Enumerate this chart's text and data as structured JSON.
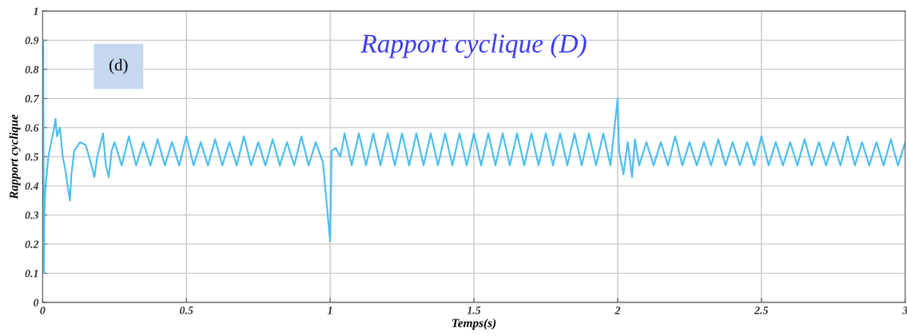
{
  "chart_data": {
    "type": "line",
    "title": "Rapport cyclique (D)",
    "xlabel": "Temps(s)",
    "ylabel": "Rapport cyclique",
    "annotations": [
      "(d)"
    ],
    "xlim": [
      0,
      3
    ],
    "ylim": [
      0,
      1
    ],
    "xticks": [
      0,
      0.5,
      1,
      1.5,
      2,
      2.5,
      3
    ],
    "yticks": [
      0,
      0.1,
      0.2,
      0.3,
      0.4,
      0.5,
      0.6,
      0.7,
      0.8,
      0.9,
      1
    ],
    "grid": true,
    "series": [
      {
        "color": "#4fbfee",
        "x": [
          0,
          0.002,
          0.004,
          0.006,
          0.01,
          0.02,
          0.03,
          0.04,
          0.045,
          0.05,
          0.06,
          0.07,
          0.08,
          0.09,
          0.095,
          0.1,
          0.11,
          0.13,
          0.15,
          0.17,
          0.18,
          0.19,
          0.2,
          0.21,
          0.22,
          0.23,
          0.24,
          0.25,
          0.275,
          0.3,
          0.325,
          0.35,
          0.375,
          0.4,
          0.425,
          0.45,
          0.475,
          0.5,
          0.525,
          0.55,
          0.575,
          0.6,
          0.625,
          0.65,
          0.675,
          0.7,
          0.725,
          0.75,
          0.775,
          0.8,
          0.825,
          0.85,
          0.875,
          0.9,
          0.925,
          0.95,
          0.975,
          1.0,
          1.005,
          1.02,
          1.035,
          1.045,
          1.05,
          1.075,
          1.1,
          1.125,
          1.15,
          1.175,
          1.2,
          1.225,
          1.25,
          1.275,
          1.3,
          1.325,
          1.35,
          1.375,
          1.4,
          1.425,
          1.45,
          1.475,
          1.5,
          1.525,
          1.55,
          1.575,
          1.6,
          1.625,
          1.65,
          1.675,
          1.7,
          1.725,
          1.75,
          1.775,
          1.8,
          1.825,
          1.85,
          1.875,
          1.9,
          1.925,
          1.95,
          1.975,
          2.0,
          2.005,
          2.02,
          2.035,
          2.05,
          2.06,
          2.075,
          2.1,
          2.125,
          2.15,
          2.175,
          2.2,
          2.225,
          2.25,
          2.275,
          2.3,
          2.325,
          2.35,
          2.375,
          2.4,
          2.425,
          2.45,
          2.475,
          2.5,
          2.525,
          2.55,
          2.575,
          2.6,
          2.625,
          2.65,
          2.675,
          2.7,
          2.725,
          2.75,
          2.775,
          2.8,
          2.825,
          2.85,
          2.875,
          2.9,
          2.925,
          2.95,
          2.975,
          3.0
        ],
        "values": [
          0.44,
          0.9,
          0.1,
          0.3,
          0.4,
          0.5,
          0.55,
          0.6,
          0.63,
          0.57,
          0.6,
          0.5,
          0.45,
          0.38,
          0.35,
          0.44,
          0.52,
          0.55,
          0.54,
          0.47,
          0.43,
          0.5,
          0.54,
          0.58,
          0.47,
          0.43,
          0.52,
          0.55,
          0.47,
          0.57,
          0.47,
          0.55,
          0.47,
          0.56,
          0.47,
          0.55,
          0.47,
          0.57,
          0.47,
          0.55,
          0.47,
          0.56,
          0.47,
          0.55,
          0.47,
          0.57,
          0.47,
          0.55,
          0.47,
          0.56,
          0.47,
          0.55,
          0.47,
          0.57,
          0.47,
          0.55,
          0.48,
          0.21,
          0.52,
          0.53,
          0.5,
          0.55,
          0.58,
          0.47,
          0.58,
          0.47,
          0.58,
          0.47,
          0.58,
          0.47,
          0.58,
          0.47,
          0.58,
          0.47,
          0.58,
          0.47,
          0.58,
          0.47,
          0.58,
          0.47,
          0.58,
          0.47,
          0.58,
          0.47,
          0.58,
          0.47,
          0.58,
          0.47,
          0.58,
          0.47,
          0.58,
          0.47,
          0.58,
          0.47,
          0.58,
          0.47,
          0.58,
          0.47,
          0.58,
          0.47,
          0.7,
          0.52,
          0.44,
          0.55,
          0.43,
          0.56,
          0.47,
          0.55,
          0.47,
          0.55,
          0.47,
          0.57,
          0.47,
          0.55,
          0.47,
          0.55,
          0.47,
          0.56,
          0.47,
          0.55,
          0.47,
          0.55,
          0.47,
          0.57,
          0.47,
          0.55,
          0.47,
          0.55,
          0.47,
          0.56,
          0.47,
          0.55,
          0.47,
          0.55,
          0.47,
          0.57,
          0.47,
          0.55,
          0.47,
          0.55,
          0.47,
          0.56,
          0.47,
          0.55
        ]
      }
    ]
  }
}
